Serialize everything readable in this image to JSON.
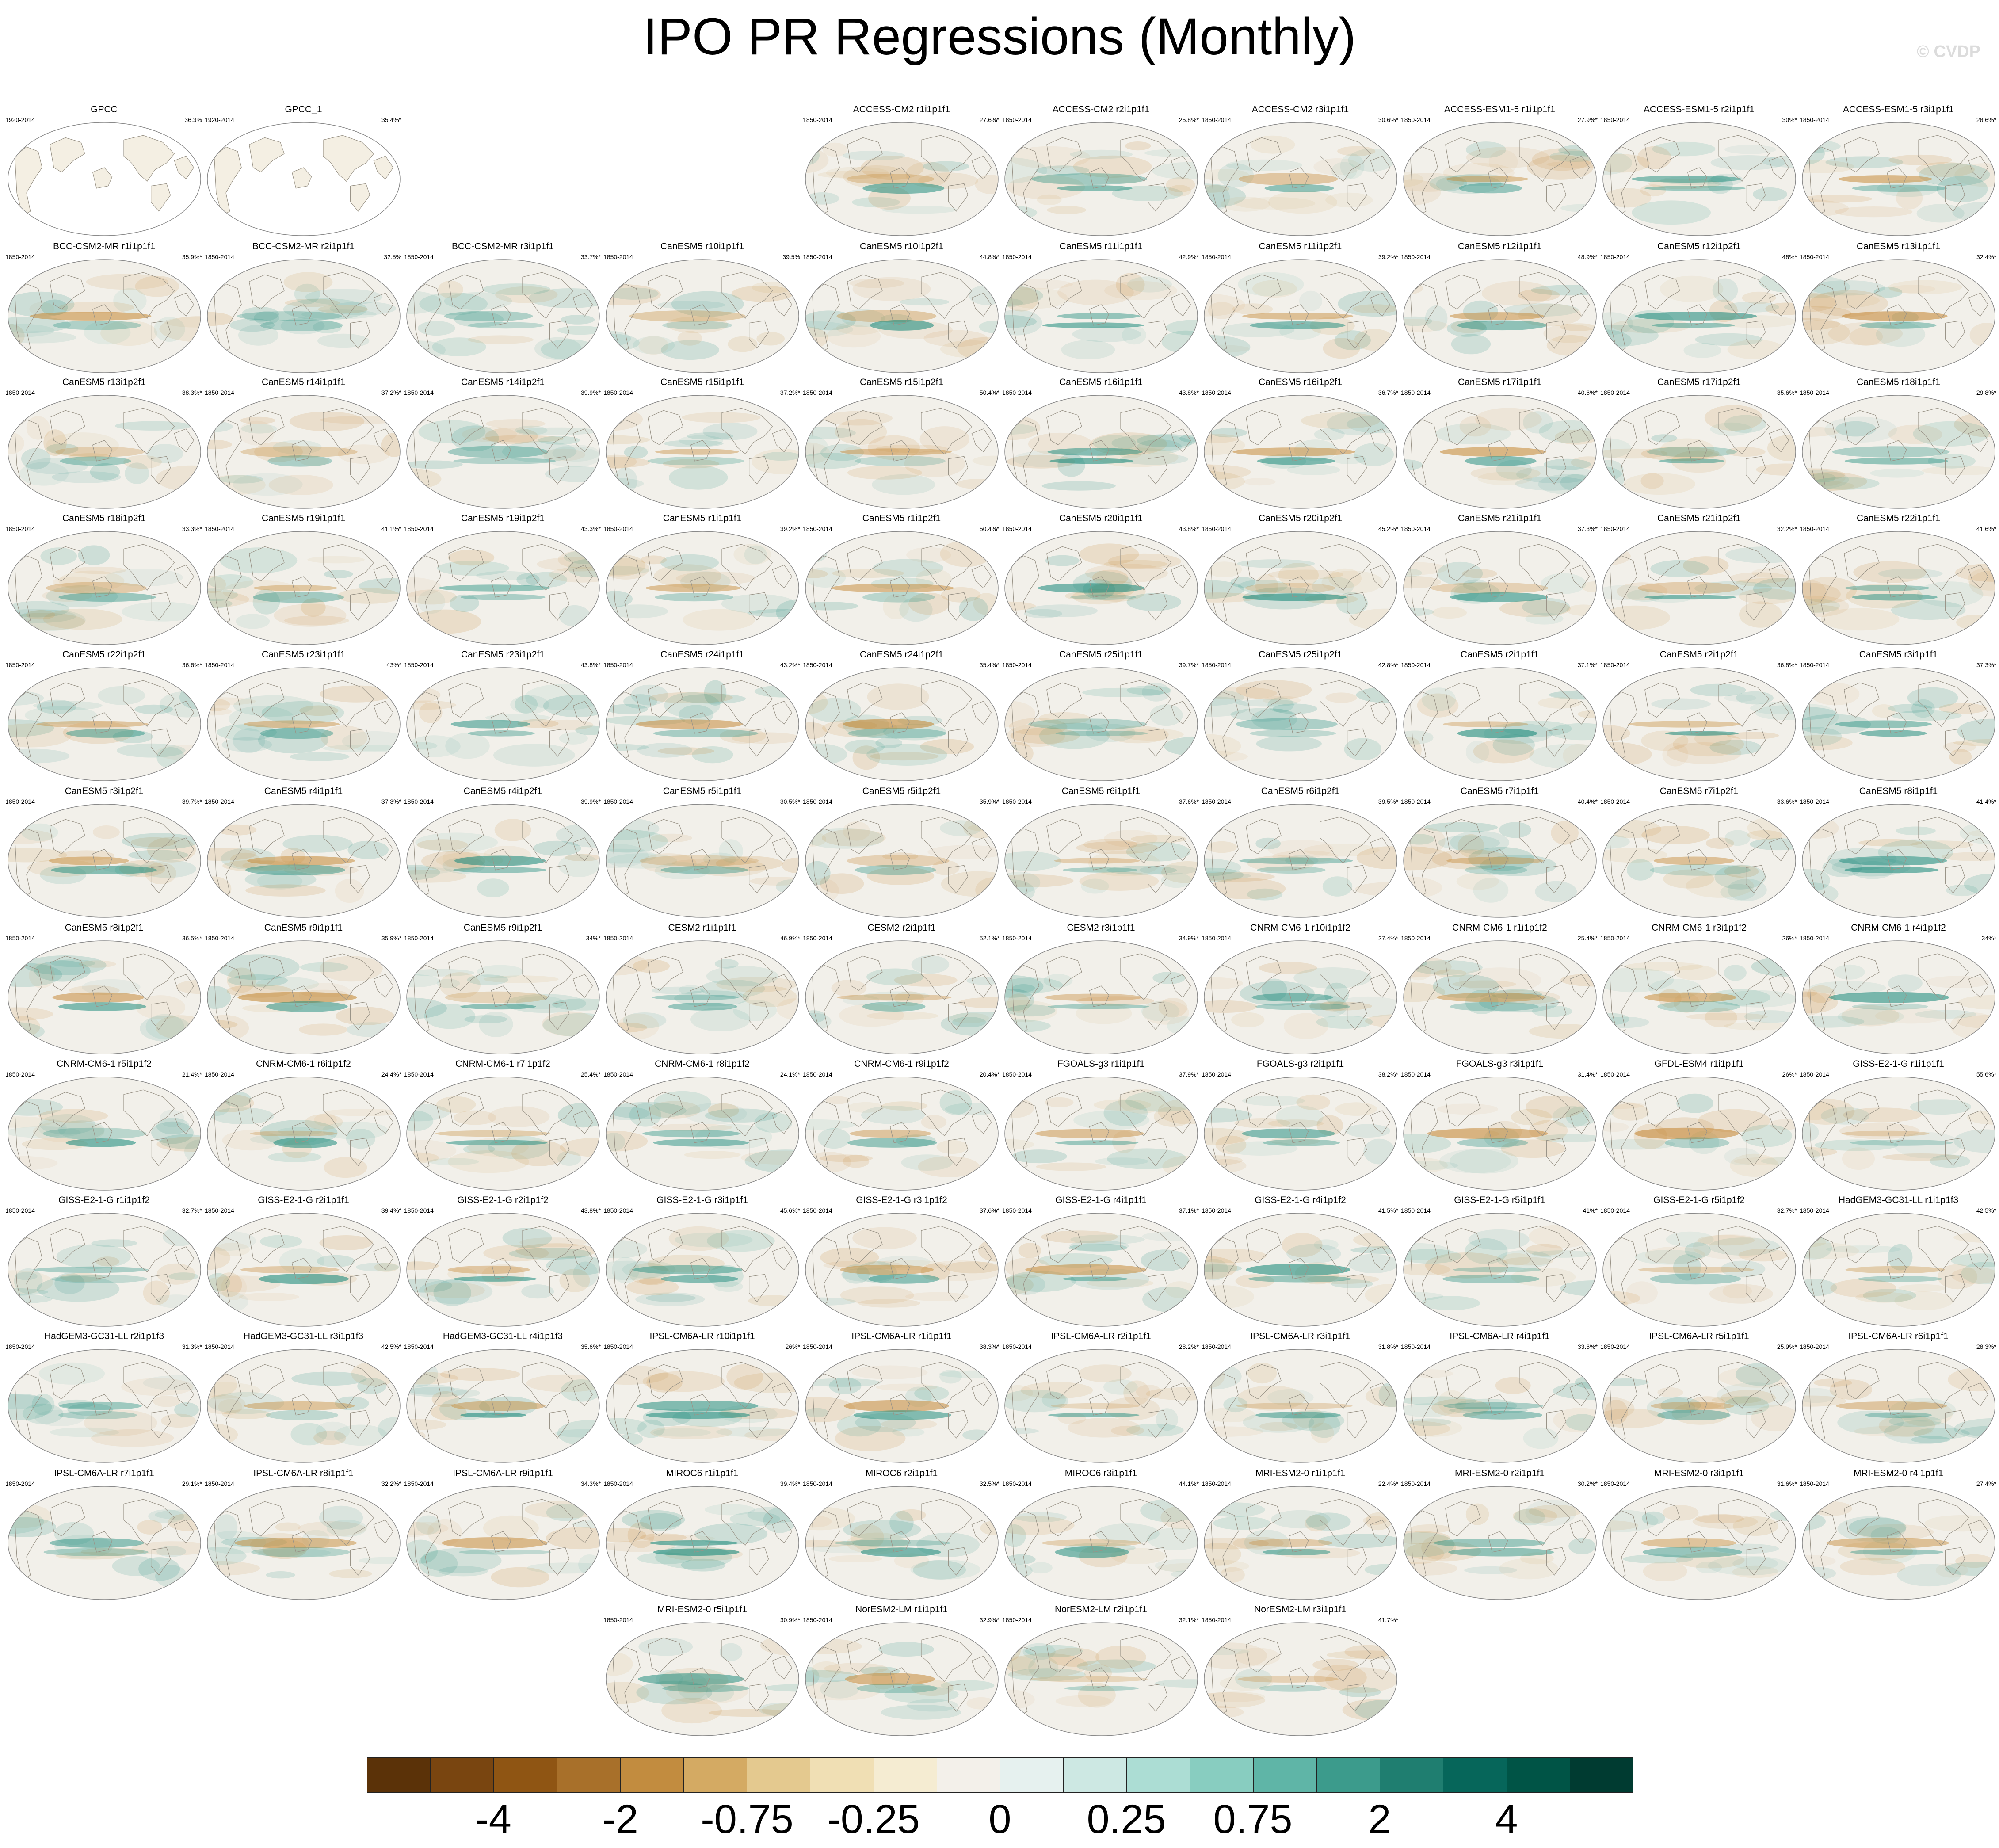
{
  "title": "IPO PR Regressions (Monthly)",
  "copyright": "© CVDP",
  "palette": {
    "background": "#ffffff",
    "map_land": "#f4efe3",
    "map_ocean": "#f2f0ea",
    "coast": "#9a9488",
    "wet": "#1a8a7b",
    "dry": "#c68b3a"
  },
  "panels": [
    {
      "title": "GPCC",
      "period": "1920-2014",
      "pct": "36.3%",
      "obs": true
    },
    {
      "title": "GPCC_1",
      "period": "1920-2014",
      "pct": "35.4%*",
      "obs": true
    },
    {
      "title": "ACCESS-CM2 r1i1p1f1",
      "period": "1850-2014",
      "pct": "27.6%*"
    },
    {
      "title": "ACCESS-CM2 r2i1p1f1",
      "period": "1850-2014",
      "pct": "25.8%*"
    },
    {
      "title": "ACCESS-CM2 r3i1p1f1",
      "period": "1850-2014",
      "pct": "30.6%*"
    },
    {
      "title": "ACCESS-ESM1-5 r1i1p1f1",
      "period": "1850-2014",
      "pct": "27.9%*"
    },
    {
      "title": "ACCESS-ESM1-5 r2i1p1f1",
      "period": "1850-2014",
      "pct": "30%*"
    },
    {
      "title": "ACCESS-ESM1-5 r3i1p1f1",
      "period": "1850-2014",
      "pct": "28.6%*"
    },
    {
      "title": "BCC-CSM2-MR r1i1p1f1",
      "period": "1850-2014",
      "pct": "35.9%*"
    },
    {
      "title": "BCC-CSM2-MR r2i1p1f1",
      "period": "1850-2014",
      "pct": "32.5%"
    },
    {
      "title": "BCC-CSM2-MR r3i1p1f1",
      "period": "1850-2014",
      "pct": "33.7%*"
    },
    {
      "title": "CanESM5 r10i1p1f1",
      "period": "1850-2014",
      "pct": "39.5%"
    },
    {
      "title": "CanESM5 r10i1p2f1",
      "period": "1850-2014",
      "pct": "44.8%*"
    },
    {
      "title": "CanESM5 r11i1p1f1",
      "period": "1850-2014",
      "pct": "42.9%*"
    },
    {
      "title": "CanESM5 r11i1p2f1",
      "period": "1850-2014",
      "pct": "39.2%*"
    },
    {
      "title": "CanESM5 r12i1p1f1",
      "period": "1850-2014",
      "pct": "48.9%*"
    },
    {
      "title": "CanESM5 r12i1p2f1",
      "period": "1850-2014",
      "pct": "48%*"
    },
    {
      "title": "CanESM5 r13i1p1f1",
      "period": "1850-2014",
      "pct": "32.4%*"
    },
    {
      "title": "CanESM5 r13i1p2f1",
      "period": "1850-2014",
      "pct": "38.3%*"
    },
    {
      "title": "CanESM5 r14i1p1f1",
      "period": "1850-2014",
      "pct": "37.2%*"
    },
    {
      "title": "CanESM5 r14i1p2f1",
      "period": "1850-2014",
      "pct": "39.9%*"
    },
    {
      "title": "CanESM5 r15i1p1f1",
      "period": "1850-2014",
      "pct": "37.2%*"
    },
    {
      "title": "CanESM5 r15i1p2f1",
      "period": "1850-2014",
      "pct": "50.4%*"
    },
    {
      "title": "CanESM5 r16i1p1f1",
      "period": "1850-2014",
      "pct": "43.8%*"
    },
    {
      "title": "CanESM5 r16i1p2f1",
      "period": "1850-2014",
      "pct": "36.7%*"
    },
    {
      "title": "CanESM5 r17i1p1f1",
      "period": "1850-2014",
      "pct": "40.6%*"
    },
    {
      "title": "CanESM5 r17i1p2f1",
      "period": "1850-2014",
      "pct": "35.6%*"
    },
    {
      "title": "CanESM5 r18i1p1f1",
      "period": "1850-2014",
      "pct": "29.8%*"
    },
    {
      "title": "CanESM5 r18i1p2f1",
      "period": "1850-2014",
      "pct": "33.3%*"
    },
    {
      "title": "CanESM5 r19i1p1f1",
      "period": "1850-2014",
      "pct": "41.1%*"
    },
    {
      "title": "CanESM5 r19i1p2f1",
      "period": "1850-2014",
      "pct": "43.3%*"
    },
    {
      "title": "CanESM5 r1i1p1f1",
      "period": "1850-2014",
      "pct": "39.2%*"
    },
    {
      "title": "CanESM5 r1i1p2f1",
      "period": "1850-2014",
      "pct": "50.4%*"
    },
    {
      "title": "CanESM5 r20i1p1f1",
      "period": "1850-2014",
      "pct": "43.8%*"
    },
    {
      "title": "CanESM5 r20i1p2f1",
      "period": "1850-2014",
      "pct": "45.2%*"
    },
    {
      "title": "CanESM5 r21i1p1f1",
      "period": "1850-2014",
      "pct": "37.3%*"
    },
    {
      "title": "CanESM5 r21i1p2f1",
      "period": "1850-2014",
      "pct": "32.2%*"
    },
    {
      "title": "CanESM5 r22i1p1f1",
      "period": "1850-2014",
      "pct": "41.6%*"
    },
    {
      "title": "CanESM5 r22i1p2f1",
      "period": "1850-2014",
      "pct": "36.6%*"
    },
    {
      "title": "CanESM5 r23i1p1f1",
      "period": "1850-2014",
      "pct": "43%*"
    },
    {
      "title": "CanESM5 r23i1p2f1",
      "period": "1850-2014",
      "pct": "43.8%*"
    },
    {
      "title": "CanESM5 r24i1p1f1",
      "period": "1850-2014",
      "pct": "43.2%*"
    },
    {
      "title": "CanESM5 r24i1p2f1",
      "period": "1850-2014",
      "pct": "35.4%*"
    },
    {
      "title": "CanESM5 r25i1p1f1",
      "period": "1850-2014",
      "pct": "39.7%*"
    },
    {
      "title": "CanESM5 r25i1p2f1",
      "period": "1850-2014",
      "pct": "42.8%*"
    },
    {
      "title": "CanESM5 r2i1p1f1",
      "period": "1850-2014",
      "pct": "37.1%*"
    },
    {
      "title": "CanESM5 r2i1p2f1",
      "period": "1850-2014",
      "pct": "36.8%*"
    },
    {
      "title": "CanESM5 r3i1p1f1",
      "period": "1850-2014",
      "pct": "37.3%*"
    },
    {
      "title": "CanESM5 r3i1p2f1",
      "period": "1850-2014",
      "pct": "39.7%*"
    },
    {
      "title": "CanESM5 r4i1p1f1",
      "period": "1850-2014",
      "pct": "37.3%*"
    },
    {
      "title": "CanESM5 r4i1p2f1",
      "period": "1850-2014",
      "pct": "39.9%*"
    },
    {
      "title": "CanESM5 r5i1p1f1",
      "period": "1850-2014",
      "pct": "30.5%*"
    },
    {
      "title": "CanESM5 r5i1p2f1",
      "period": "1850-2014",
      "pct": "35.9%*"
    },
    {
      "title": "CanESM5 r6i1p1f1",
      "period": "1850-2014",
      "pct": "37.6%*"
    },
    {
      "title": "CanESM5 r6i1p2f1",
      "period": "1850-2014",
      "pct": "39.5%*"
    },
    {
      "title": "CanESM5 r7i1p1f1",
      "period": "1850-2014",
      "pct": "40.4%*"
    },
    {
      "title": "CanESM5 r7i1p2f1",
      "period": "1850-2014",
      "pct": "33.6%*"
    },
    {
      "title": "CanESM5 r8i1p1f1",
      "period": "1850-2014",
      "pct": "41.4%*"
    },
    {
      "title": "CanESM5 r8i1p2f1",
      "period": "1850-2014",
      "pct": "36.5%*"
    },
    {
      "title": "CanESM5 r9i1p1f1",
      "period": "1850-2014",
      "pct": "35.9%*"
    },
    {
      "title": "CanESM5 r9i1p2f1",
      "period": "1850-2014",
      "pct": "34%*"
    },
    {
      "title": "CESM2 r1i1p1f1",
      "period": "1850-2014",
      "pct": "46.9%*"
    },
    {
      "title": "CESM2 r2i1p1f1",
      "period": "1850-2014",
      "pct": "52.1%*"
    },
    {
      "title": "CESM2 r3i1p1f1",
      "period": "1850-2014",
      "pct": "34.9%*"
    },
    {
      "title": "CNRM-CM6-1 r10i1p1f2",
      "period": "1850-2014",
      "pct": "27.4%*"
    },
    {
      "title": "CNRM-CM6-1 r1i1p1f2",
      "period": "1850-2014",
      "pct": "25.4%*"
    },
    {
      "title": "CNRM-CM6-1 r3i1p1f2",
      "period": "1850-2014",
      "pct": "26%*"
    },
    {
      "title": "CNRM-CM6-1 r4i1p1f2",
      "period": "1850-2014",
      "pct": "34%*"
    },
    {
      "title": "CNRM-CM6-1 r5i1p1f2",
      "period": "1850-2014",
      "pct": "21.4%*"
    },
    {
      "title": "CNRM-CM6-1 r6i1p1f2",
      "period": "1850-2014",
      "pct": "24.4%*"
    },
    {
      "title": "CNRM-CM6-1 r7i1p1f2",
      "period": "1850-2014",
      "pct": "25.4%*"
    },
    {
      "title": "CNRM-CM6-1 r8i1p1f2",
      "period": "1850-2014",
      "pct": "24.1%*"
    },
    {
      "title": "CNRM-CM6-1 r9i1p1f2",
      "period": "1850-2014",
      "pct": "20.4%*"
    },
    {
      "title": "FGOALS-g3 r1i1p1f1",
      "period": "1850-2014",
      "pct": "37.9%*"
    },
    {
      "title": "FGOALS-g3 r2i1p1f1",
      "period": "1850-2014",
      "pct": "38.2%*"
    },
    {
      "title": "FGOALS-g3 r3i1p1f1",
      "period": "1850-2014",
      "pct": "31.4%*"
    },
    {
      "title": "GFDL-ESM4 r1i1p1f1",
      "period": "1850-2014",
      "pct": "26%*"
    },
    {
      "title": "GISS-E2-1-G r1i1p1f1",
      "period": "1850-2014",
      "pct": "55.6%*"
    },
    {
      "title": "GISS-E2-1-G r1i1p1f2",
      "period": "1850-2014",
      "pct": "32.7%*"
    },
    {
      "title": "GISS-E2-1-G r2i1p1f1",
      "period": "1850-2014",
      "pct": "39.4%*"
    },
    {
      "title": "GISS-E2-1-G r2i1p1f2",
      "period": "1850-2014",
      "pct": "43.8%*"
    },
    {
      "title": "GISS-E2-1-G r3i1p1f1",
      "period": "1850-2014",
      "pct": "45.6%*"
    },
    {
      "title": "GISS-E2-1-G r3i1p1f2",
      "period": "1850-2014",
      "pct": "37.6%*"
    },
    {
      "title": "GISS-E2-1-G r4i1p1f1",
      "period": "1850-2014",
      "pct": "37.1%*"
    },
    {
      "title": "GISS-E2-1-G r4i1p1f2",
      "period": "1850-2014",
      "pct": "41.5%*"
    },
    {
      "title": "GISS-E2-1-G r5i1p1f1",
      "period": "1850-2014",
      "pct": "41%*"
    },
    {
      "title": "GISS-E2-1-G r5i1p1f2",
      "period": "1850-2014",
      "pct": "32.7%*"
    },
    {
      "title": "HadGEM3-GC31-LL r1i1p1f3",
      "period": "1850-2014",
      "pct": "42.5%*"
    },
    {
      "title": "HadGEM3-GC31-LL r2i1p1f3",
      "period": "1850-2014",
      "pct": "31.3%*"
    },
    {
      "title": "HadGEM3-GC31-LL r3i1p1f3",
      "period": "1850-2014",
      "pct": "42.5%*"
    },
    {
      "title": "HadGEM3-GC31-LL r4i1p1f3",
      "period": "1850-2014",
      "pct": "35.6%*"
    },
    {
      "title": "IPSL-CM6A-LR r10i1p1f1",
      "period": "1850-2014",
      "pct": "26%*"
    },
    {
      "title": "IPSL-CM6A-LR r1i1p1f1",
      "period": "1850-2014",
      "pct": "38.3%*"
    },
    {
      "title": "IPSL-CM6A-LR r2i1p1f1",
      "period": "1850-2014",
      "pct": "28.2%*"
    },
    {
      "title": "IPSL-CM6A-LR r3i1p1f1",
      "period": "1850-2014",
      "pct": "31.8%*"
    },
    {
      "title": "IPSL-CM6A-LR r4i1p1f1",
      "period": "1850-2014",
      "pct": "33.6%*"
    },
    {
      "title": "IPSL-CM6A-LR r5i1p1f1",
      "period": "1850-2014",
      "pct": "25.9%*"
    },
    {
      "title": "IPSL-CM6A-LR r6i1p1f1",
      "period": "1850-2014",
      "pct": "28.3%*"
    },
    {
      "title": "IPSL-CM6A-LR r7i1p1f1",
      "period": "1850-2014",
      "pct": "29.1%*"
    },
    {
      "title": "IPSL-CM6A-LR r8i1p1f1",
      "period": "1850-2014",
      "pct": "32.2%*"
    },
    {
      "title": "IPSL-CM6A-LR r9i1p1f1",
      "period": "1850-2014",
      "pct": "34.3%*"
    },
    {
      "title": "MIROC6 r1i1p1f1",
      "period": "1850-2014",
      "pct": "39.4%*"
    },
    {
      "title": "MIROC6 r2i1p1f1",
      "period": "1850-2014",
      "pct": "32.5%*"
    },
    {
      "title": "MIROC6 r3i1p1f1",
      "period": "1850-2014",
      "pct": "44.1%*"
    },
    {
      "title": "MRI-ESM2-0 r1i1p1f1",
      "period": "1850-2014",
      "pct": "22.4%*"
    },
    {
      "title": "MRI-ESM2-0 r2i1p1f1",
      "period": "1850-2014",
      "pct": "30.2%*"
    },
    {
      "title": "MRI-ESM2-0 r3i1p1f1",
      "period": "1850-2014",
      "pct": "31.6%*"
    },
    {
      "title": "MRI-ESM2-0 r4i1p1f1",
      "period": "1850-2014",
      "pct": "27.4%*"
    },
    {
      "title": "MRI-ESM2-0 r5i1p1f1",
      "period": "1850-2014",
      "pct": "30.9%*"
    },
    {
      "title": "NorESM2-LM r1i1p1f1",
      "period": "1850-2014",
      "pct": "32.9%*"
    },
    {
      "title": "NorESM2-LM r2i1p1f1",
      "period": "1850-2014",
      "pct": "32.1%*"
    },
    {
      "title": "NorESM2-LM r3i1p1f1",
      "period": "1850-2014",
      "pct": "41.7%*"
    }
  ],
  "colorbar": {
    "colors": [
      "#5b3208",
      "#794510",
      "#8f5513",
      "#a8702a",
      "#c28c3f",
      "#d4aa63",
      "#e4c98f",
      "#f0dfb4",
      "#f5ecd2",
      "#f3f0ea",
      "#e6f1ef",
      "#cde8e3",
      "#acddd4",
      "#88cdc0",
      "#5fb5a7",
      "#3c9b8c",
      "#1f7e70",
      "#06665a",
      "#005446",
      "#003b31"
    ],
    "labels": [
      "-4",
      "-2",
      "-0.75",
      "-0.25",
      "0",
      "0.25",
      "0.75",
      "2",
      "4"
    ]
  }
}
